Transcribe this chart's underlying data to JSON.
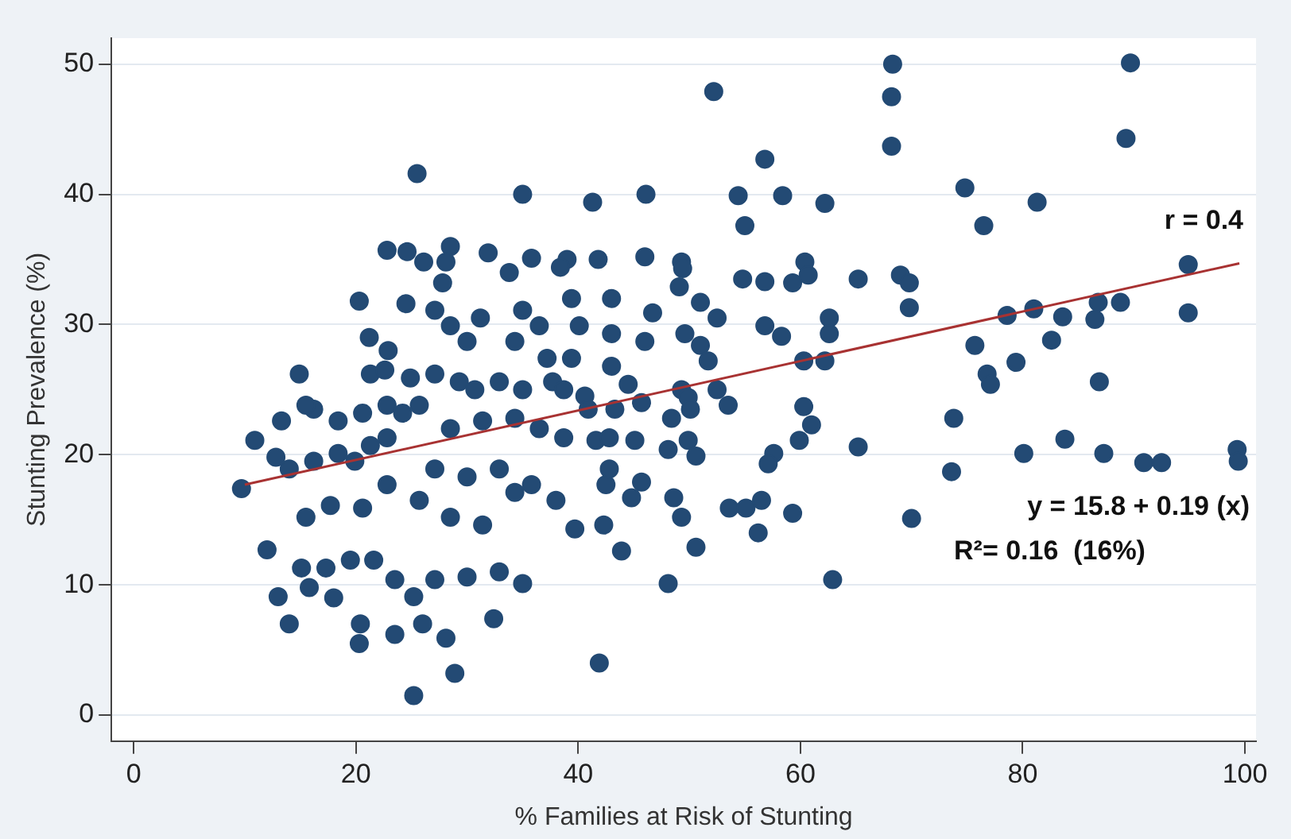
{
  "chart_data": {
    "type": "scatter",
    "xlabel": "% Families at Risk of Stunting",
    "ylabel": "Stunting Prevalence (%)",
    "xlim": [
      -2,
      101
    ],
    "ylim": [
      -2,
      52
    ],
    "xticks": [
      0,
      20,
      40,
      60,
      80,
      100
    ],
    "yticks": [
      0,
      10,
      20,
      30,
      40,
      50
    ],
    "grid": "y",
    "legend": false,
    "marker": "circle",
    "annotations": [
      "r = 0.4",
      "y = 15.8 + 0.19 (x)",
      "R²= 0.16  (16%)"
    ],
    "series": [
      {
        "color": "#234a74",
        "x": [
          68.3,
          68.2,
          68.2,
          74.8,
          76.5,
          81.3,
          89.7,
          89.3,
          69,
          69.8,
          69.8,
          94.9,
          94.9,
          78.6,
          81,
          83.6,
          86.8,
          86.5,
          88.8,
          75.7,
          82.6,
          79.4,
          76.8,
          77.1,
          86.9,
          73.8,
          83.8,
          80.1,
          87.3,
          90.9,
          92.5,
          99.3,
          99.4,
          73.6,
          70,
          52.2,
          56.8,
          41.3,
          46.1,
          54.4,
          58.4,
          62.2,
          55,
          39,
          41.8,
          46,
          49.3,
          49.4,
          54.8,
          56.8,
          59.3,
          60.4,
          65.2,
          60.7,
          39.4,
          43,
          46.7,
          49.1,
          51,
          52.5,
          56.8,
          62.6,
          58.3,
          62.6,
          40.1,
          43,
          46,
          49.6,
          51,
          51.7,
          60.3,
          62.2,
          39.4,
          43,
          44.5,
          49.3,
          49.9,
          50.1,
          52.5,
          40.6,
          40.9,
          43.3,
          45.7,
          48.4,
          53.5,
          41.6,
          42.8,
          45.1,
          48.1,
          49.9,
          50.6,
          60.3,
          61,
          59.9,
          57.6,
          57.1,
          65.2,
          42.5,
          45.7,
          48.6,
          49.3,
          42.3,
          44.8,
          53.6,
          55.1,
          56.5,
          56.2,
          59.3,
          50.6,
          43.9,
          48.1,
          62.9,
          41.9,
          39.7,
          42.8,
          25.5,
          35,
          24.5,
          20.3,
          22.8,
          24.6,
          28.5,
          28.1,
          31.9,
          33.8,
          35.8,
          38.4,
          26.1,
          27.8,
          27.1,
          28.5,
          30,
          31.2,
          34.3,
          35,
          36.5,
          37.2,
          21.2,
          22.9,
          21.3,
          22.6,
          24.9,
          27.1,
          29.3,
          30.7,
          32.9,
          35,
          37.7,
          38.7,
          14.9,
          16.2,
          15.5,
          18.4,
          20.6,
          22.8,
          24.2,
          25.7,
          22.8,
          21.3,
          19.9,
          18.4,
          16.2,
          14,
          12.8,
          9.7,
          13.3,
          10.9,
          28.5,
          31.4,
          34.3,
          36.5,
          38.7,
          27.1,
          30,
          32.9,
          35.8,
          38,
          25.7,
          28.5,
          31.4,
          34.3,
          22.8,
          20.6,
          17.7,
          15.5,
          15.1,
          12,
          13,
          15.8,
          17.3,
          19.5,
          21.6,
          23.5,
          27.1,
          30,
          32.9,
          35,
          25.2,
          14,
          20.4,
          20.3,
          23.5,
          28.1,
          32.4,
          28.9,
          25.2,
          18,
          26
        ],
        "values": [
          50,
          47.5,
          43.7,
          40.5,
          37.6,
          39.4,
          50.1,
          44.3,
          33.8,
          33.2,
          31.3,
          34.6,
          30.9,
          30.7,
          31.2,
          30.6,
          31.7,
          30.4,
          31.7,
          28.4,
          28.8,
          27.1,
          26.2,
          25.4,
          25.6,
          22.8,
          21.2,
          20.1,
          20.1,
          19.4,
          19.4,
          20.4,
          19.5,
          18.7,
          15.1,
          47.9,
          42.7,
          39.4,
          40,
          39.9,
          39.9,
          39.3,
          37.6,
          35,
          35,
          35.2,
          34.8,
          34.3,
          33.5,
          33.3,
          33.2,
          34.8,
          33.5,
          33.8,
          32,
          32,
          30.9,
          32.9,
          31.7,
          30.5,
          29.9,
          30.5,
          29.1,
          29.3,
          29.9,
          29.3,
          28.7,
          29.3,
          28.4,
          27.2,
          27.2,
          27.2,
          27.4,
          26.8,
          25.4,
          25,
          24.4,
          23.5,
          25,
          24.5,
          23.5,
          23.5,
          24,
          22.8,
          23.8,
          21.1,
          21.3,
          21.1,
          20.4,
          21.1,
          19.9,
          23.7,
          22.3,
          21.1,
          20.1,
          19.3,
          20.6,
          17.7,
          17.9,
          16.7,
          15.2,
          14.6,
          16.7,
          15.9,
          15.9,
          16.5,
          14,
          15.5,
          12.9,
          12.6,
          10.1,
          10.4,
          4,
          14.3,
          18.9,
          41.6,
          40,
          31.6,
          31.8,
          35.7,
          35.6,
          36,
          34.8,
          35.5,
          34,
          35.1,
          34.4,
          34.8,
          33.2,
          31.1,
          29.9,
          28.7,
          30.5,
          28.7,
          31.1,
          29.9,
          27.4,
          29,
          28,
          26.2,
          26.5,
          25.9,
          26.2,
          25.6,
          25,
          25.6,
          25,
          25.6,
          25,
          26.2,
          23.5,
          23.8,
          22.6,
          23.2,
          23.8,
          23.2,
          23.8,
          21.3,
          20.7,
          19.5,
          20.1,
          19.5,
          18.9,
          19.8,
          17.4,
          22.6,
          21.1,
          22,
          22.6,
          22.8,
          22,
          21.3,
          18.9,
          18.3,
          18.9,
          17.7,
          16.5,
          16.5,
          15.2,
          14.6,
          17.1,
          17.7,
          15.9,
          16.1,
          15.2,
          11.3,
          12.7,
          9.1,
          9.8,
          11.3,
          11.9,
          11.9,
          10.4,
          10.4,
          10.6,
          11,
          10.1,
          9.1,
          7,
          7,
          5.5,
          6.2,
          5.9,
          7.4,
          3.2,
          1.5,
          9,
          7
        ]
      },
      {
        "type": "line",
        "color": "#a83232",
        "marker": "none",
        "line_style": "solid",
        "x": [
          10,
          99.5
        ],
        "values": [
          17.7,
          34.7
        ]
      }
    ]
  }
}
